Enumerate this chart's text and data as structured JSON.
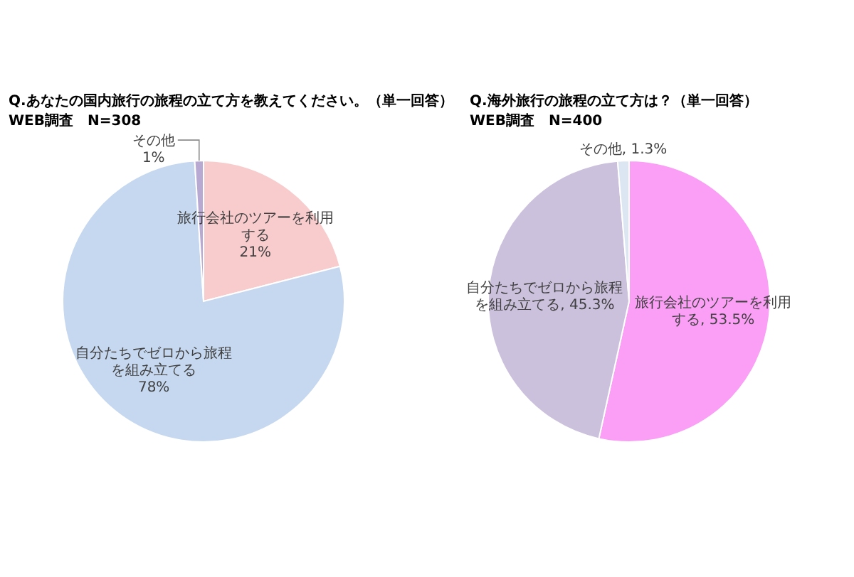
{
  "chart_data": [
    {
      "type": "pie",
      "title": "Q.あなたの国内旅行の旅程の立て方を教えてください。（単一回答）",
      "subtitle": "WEB調査　N=308",
      "categories": [
        "旅行会社のツアーを利用する",
        "自分たちでゼロから旅程を組み立てる",
        "その他"
      ],
      "values": [
        21,
        78,
        1
      ],
      "colors": [
        "#f8cbcc",
        "#c6d8ef",
        "#b8a9d3"
      ],
      "value_labels": [
        "21%",
        "78%",
        "1%"
      ]
    },
    {
      "type": "pie",
      "title": "Q.海外旅行の旅程の立て方は？（単一回答）",
      "subtitle": "WEB調査　N=400",
      "categories": [
        "旅行会社のツアーを利用する",
        "自分たちでゼロから旅程を組み立てる",
        "その他"
      ],
      "values": [
        53.5,
        45.3,
        1.3
      ],
      "colors": [
        "#fa9ff5",
        "#cbc1dd",
        "#dce6f2"
      ],
      "value_labels": [
        "53.5%",
        "45.3%",
        "1.3%"
      ]
    }
  ]
}
